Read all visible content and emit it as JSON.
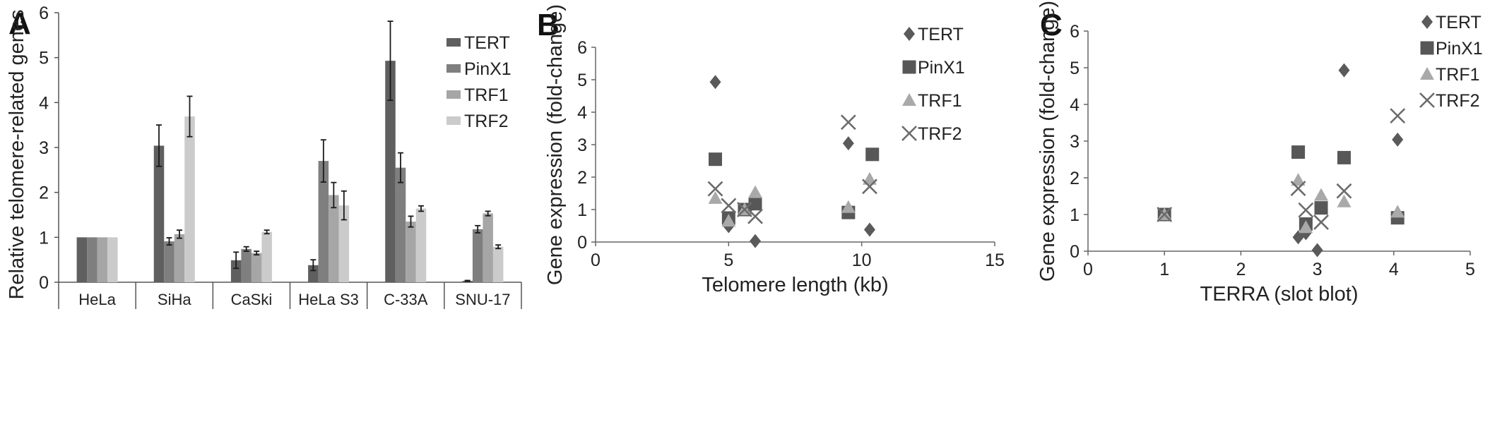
{
  "panels": [
    {
      "letter": "A"
    },
    {
      "letter": "B"
    },
    {
      "letter": "C"
    }
  ],
  "colors": {
    "TERT": "#5f5f5f",
    "PinX1": "#7f7f7f",
    "TRF1": "#a6a6a6",
    "TRF2": "#cbcbcb",
    "scatter_TERT": "#5a5a5a",
    "scatter_PinX1": "#575757",
    "scatter_TRF1": "#a9a9a9",
    "scatter_TRF2": "#6b6b6b"
  },
  "chart_data": [
    {
      "type": "bar",
      "panel": "A",
      "ylabel": "Relative telomere-related genes",
      "xlabel": "",
      "ylim": [
        0,
        6
      ],
      "yticks": [
        0,
        1,
        2,
        3,
        4,
        5,
        6
      ],
      "grid": false,
      "legend": "top-right",
      "categories": [
        "HeLa",
        "SiHa",
        "CaSki",
        "HeLa S3",
        "C-33A",
        "SNU-17"
      ],
      "series": [
        {
          "name": "TERT",
          "values": [
            1.0,
            3.04,
            0.49,
            0.38,
            4.93,
            0.03
          ],
          "errors": [
            0.0,
            0.46,
            0.18,
            0.12,
            0.88,
            0.01
          ]
        },
        {
          "name": "PinX1",
          "values": [
            1.0,
            0.91,
            0.74,
            2.7,
            2.55,
            1.18
          ],
          "errors": [
            0.0,
            0.08,
            0.05,
            0.47,
            0.33,
            0.08
          ]
        },
        {
          "name": "TRF1",
          "values": [
            1.0,
            1.07,
            0.65,
            1.94,
            1.35,
            1.53
          ],
          "errors": [
            0.0,
            0.09,
            0.04,
            0.28,
            0.12,
            0.05
          ]
        },
        {
          "name": "TRF2",
          "values": [
            1.0,
            3.69,
            1.12,
            1.71,
            1.64,
            0.79
          ],
          "errors": [
            0.0,
            0.45,
            0.04,
            0.32,
            0.06,
            0.04
          ]
        }
      ]
    },
    {
      "type": "scatter",
      "panel": "B",
      "xlabel": "Telomere length (kb)",
      "ylabel": "Gene expression (fold-change)",
      "xlim": [
        0,
        15
      ],
      "ylim": [
        0,
        6
      ],
      "xticks": [
        0,
        5,
        10,
        15
      ],
      "yticks": [
        0,
        1,
        2,
        3,
        4,
        5,
        6
      ],
      "grid": false,
      "legend": "top-right",
      "series": [
        {
          "name": "TERT",
          "marker": "diamond",
          "points": [
            [
              4.5,
              4.93
            ],
            [
              5.0,
              0.49
            ],
            [
              6.0,
              0.03
            ],
            [
              9.5,
              3.04
            ],
            [
              10.3,
              0.38
            ],
            [
              5.7,
              1.0
            ]
          ]
        },
        {
          "name": "PinX1",
          "marker": "square",
          "points": [
            [
              4.5,
              2.55
            ],
            [
              5.0,
              0.74
            ],
            [
              5.6,
              1.0
            ],
            [
              6.0,
              1.18
            ],
            [
              9.5,
              0.91
            ],
            [
              10.4,
              2.7
            ]
          ]
        },
        {
          "name": "TRF1",
          "marker": "triangle",
          "points": [
            [
              4.5,
              1.35
            ],
            [
              5.0,
              0.65
            ],
            [
              5.6,
              1.0
            ],
            [
              6.0,
              1.53
            ],
            [
              9.5,
              1.07
            ],
            [
              10.3,
              1.94
            ]
          ]
        },
        {
          "name": "TRF2",
          "marker": "x",
          "points": [
            [
              4.5,
              1.64
            ],
            [
              5.0,
              1.12
            ],
            [
              5.6,
              1.0
            ],
            [
              6.0,
              0.79
            ],
            [
              9.5,
              3.69
            ],
            [
              10.3,
              1.71
            ]
          ]
        }
      ]
    },
    {
      "type": "scatter",
      "panel": "C",
      "xlabel": "TERRA (slot blot)",
      "ylabel": "Gene expression (fold-change)",
      "xlim": [
        0,
        5
      ],
      "ylim": [
        0,
        6
      ],
      "xticks": [
        0,
        1,
        2,
        3,
        4,
        5
      ],
      "yticks": [
        0,
        1,
        2,
        3,
        4,
        5,
        6
      ],
      "grid": false,
      "legend": "top-right",
      "series": [
        {
          "name": "TERT",
          "marker": "diamond",
          "points": [
            [
              1.0,
              1.0
            ],
            [
              2.75,
              0.38
            ],
            [
              2.85,
              0.49
            ],
            [
              3.0,
              0.03
            ],
            [
              3.35,
              4.93
            ],
            [
              4.05,
              3.04
            ]
          ]
        },
        {
          "name": "PinX1",
          "marker": "square",
          "points": [
            [
              1.0,
              1.0
            ],
            [
              2.75,
              2.7
            ],
            [
              2.85,
              0.74
            ],
            [
              3.05,
              1.18
            ],
            [
              3.35,
              2.55
            ],
            [
              4.05,
              0.91
            ]
          ]
        },
        {
          "name": "TRF1",
          "marker": "triangle",
          "points": [
            [
              1.0,
              1.0
            ],
            [
              2.75,
              1.94
            ],
            [
              2.85,
              0.65
            ],
            [
              3.05,
              1.53
            ],
            [
              3.35,
              1.35
            ],
            [
              4.05,
              1.07
            ]
          ]
        },
        {
          "name": "TRF2",
          "marker": "x",
          "points": [
            [
              1.0,
              1.0
            ],
            [
              2.75,
              1.71
            ],
            [
              2.85,
              1.12
            ],
            [
              3.05,
              0.79
            ],
            [
              3.35,
              1.64
            ],
            [
              4.05,
              3.69
            ]
          ]
        }
      ]
    }
  ]
}
